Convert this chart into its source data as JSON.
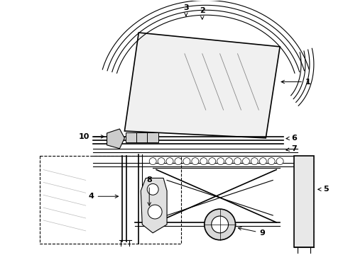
{
  "bg_color": "#ffffff",
  "line_color": "#000000",
  "label_fontsize": 8,
  "figsize": [
    4.9,
    3.6
  ],
  "dpi": 100
}
